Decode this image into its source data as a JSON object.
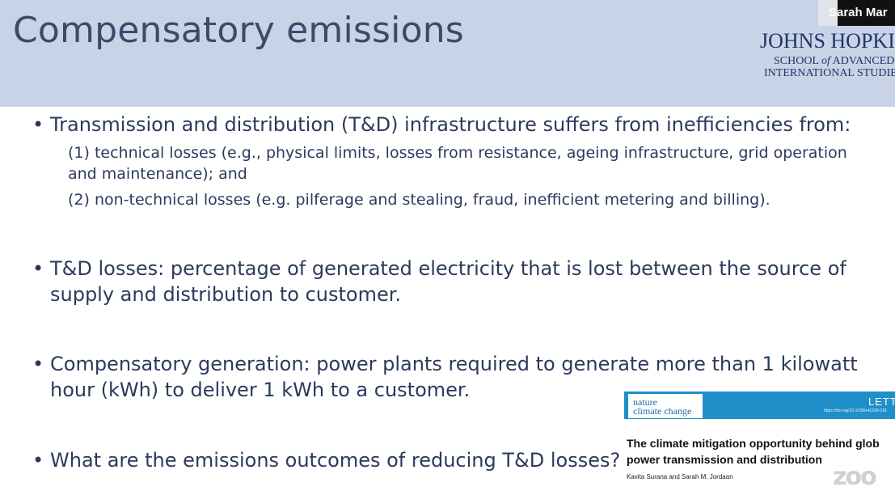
{
  "slide": {
    "title": "Compensatory emissions",
    "logo": {
      "line1": "JOHNS HOPKINS",
      "line2_prefix": "SCHOOL ",
      "line2_of": "of",
      "line2_suffix": " ADVANCED",
      "line3": "INTERNATIONAL STUDIES"
    },
    "bullets": [
      {
        "text": "Transmission and distribution (T&D) infrastructure suffers from inefficiencies from:",
        "subs": [
          "(1) technical losses (e.g., physical limits, losses from resistance, ageing infrastructure, grid operation",
          "and maintenance); and",
          "(2) non-technical losses (e.g. pilferage and stealing, fraud, inefficient metering and billing)."
        ]
      },
      {
        "lines": [
          "T&D losses: percentage of generated electricity that is lost between the source of",
          "supply and distribution to customer."
        ]
      },
      {
        "lines": [
          "Compensatory generation: power plants required to generate more than 1 kilowatt",
          "hour (kWh) to deliver 1 kWh to a customer."
        ]
      },
      {
        "text": "What are the emissions outcomes of reducing T&D losses?"
      }
    ]
  },
  "video_tile": {
    "speaker_name": "Sarah Mar"
  },
  "paper_thumbnail": {
    "journal_line1": "nature",
    "journal_line2": "climate change",
    "article_type": "LETT",
    "doi": "https://doi.org/10.1038/s41558-018",
    "title_line1": "The climate mitigation opportunity behind glob",
    "title_line2": "power transmission and distribution",
    "authors": "Kavita Surana and Sarah M. Jordaan",
    "accent_color": "#1e8fc9"
  },
  "watermark": "zoo"
}
